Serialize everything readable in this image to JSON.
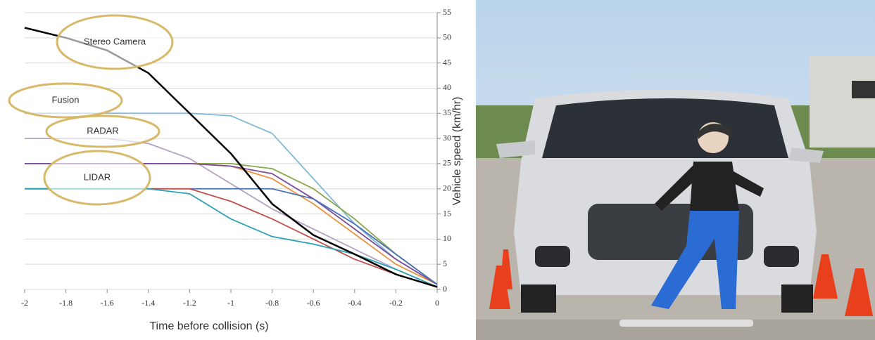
{
  "chart_data": {
    "type": "line",
    "x_label": "Time before collision (s)",
    "y_label": "Vehicle speed (km/hr)",
    "annotations": [
      "Stereo Camera",
      "Fusion",
      "RADAR",
      "LIDAR"
    ],
    "x": [
      -2,
      -1.8,
      -1.6,
      -1.4,
      -1.2,
      -1,
      -0.8,
      -0.6,
      -0.4,
      -0.2,
      0
    ],
    "series": [
      {
        "color": "#7fb9d6",
        "values": [
          35,
          35,
          35,
          35,
          35,
          34.5,
          31,
          22,
          13,
          6,
          1
        ]
      },
      {
        "color": "#b3a2c7",
        "values": [
          30,
          30,
          30,
          29,
          26,
          21,
          16,
          12,
          8,
          4,
          0.5
        ]
      },
      {
        "color": "#8aa84a",
        "values": [
          25,
          25,
          25,
          25,
          25,
          25,
          24,
          20,
          14,
          7,
          1
        ]
      },
      {
        "color": "#e8913a",
        "values": [
          25,
          25,
          25,
          25,
          25,
          24.5,
          22,
          17,
          11,
          5,
          1
        ]
      },
      {
        "color": "#7a4d9c",
        "values": [
          25,
          25,
          25,
          25,
          25,
          24.5,
          23,
          18,
          12,
          6,
          1
        ]
      },
      {
        "color": "#4a72b8",
        "values": [
          20,
          20,
          20,
          20,
          20,
          20,
          20,
          18,
          13,
          7,
          1
        ]
      },
      {
        "color": "#c0504d",
        "values": [
          20,
          20,
          20,
          20,
          20,
          17.5,
          14,
          10,
          6,
          3,
          0.5
        ]
      },
      {
        "color": "#2aa0b4",
        "values": [
          20,
          20,
          20,
          20,
          19,
          14,
          10.5,
          9,
          7,
          4,
          0.5
        ]
      },
      {
        "color": "#000000",
        "values": [
          52,
          50,
          47.5,
          43,
          35,
          27,
          17,
          10.8,
          7,
          3,
          0.5
        ]
      }
    ],
    "xlim": [
      -2,
      0
    ],
    "xticks": [
      -2,
      -1.8,
      -1.6,
      -1.4,
      -1.2,
      -1,
      -0.8,
      -0.6,
      -0.4,
      -0.2,
      0
    ],
    "ylim": [
      0,
      55
    ],
    "yticks": [
      0,
      5,
      10,
      15,
      20,
      25,
      30,
      35,
      40,
      45,
      50,
      55
    ],
    "grid": true
  }
}
